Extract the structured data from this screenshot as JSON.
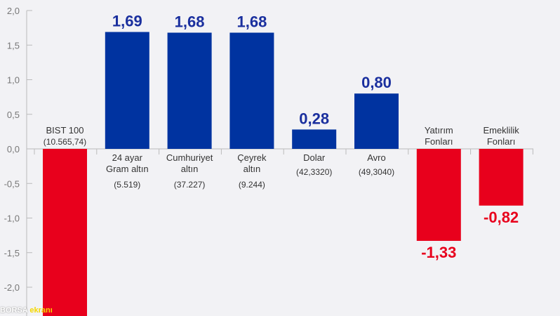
{
  "chart_data": {
    "type": "bar",
    "title": "",
    "xlabel": "",
    "ylabel": "",
    "ylim": [
      -2.4,
      2.0
    ],
    "yticks": [
      "2,0",
      "1,5",
      "1,0",
      "0,5",
      "0,0",
      "-0,5",
      "-1,0",
      "-1,5",
      "-2,0"
    ],
    "ytick_values": [
      2.0,
      1.5,
      1.0,
      0.5,
      0.0,
      -0.5,
      -1.0,
      -1.5,
      -2.0
    ],
    "grid": false,
    "colors": {
      "positive": "#0033a0",
      "negative": "#e8001c",
      "positive_label": "#1a2f9e",
      "negative_label": "#e8001c"
    },
    "bars": [
      {
        "label": [
          "BIST 100"
        ],
        "sub": "(10.565,74)",
        "value": -2.5,
        "value_label": ""
      },
      {
        "label": [
          "24 ayar",
          "Gram altın"
        ],
        "sub": "(5.519)",
        "value": 1.69,
        "value_label": "1,69"
      },
      {
        "label": [
          "Cumhuriyet",
          "altın"
        ],
        "sub": "(37.227)",
        "value": 1.68,
        "value_label": "1,68"
      },
      {
        "label": [
          "Çeyrek",
          "altın"
        ],
        "sub": "(9.244)",
        "value": 1.68,
        "value_label": "1,68"
      },
      {
        "label": [
          "Dolar"
        ],
        "sub": "(42,3320)",
        "value": 0.28,
        "value_label": "0,28"
      },
      {
        "label": [
          "Avro"
        ],
        "sub": "(49,3040)",
        "value": 0.8,
        "value_label": "0,80"
      },
      {
        "label": [
          "Yatırım",
          "Fonları"
        ],
        "sub": "",
        "value": -1.33,
        "value_label": "-1,33"
      },
      {
        "label": [
          "Emeklilik",
          "Fonları"
        ],
        "sub": "",
        "value": -0.82,
        "value_label": "-0,82"
      }
    ]
  },
  "watermark": {
    "part1": "BORSA",
    "part2": "ekranı"
  }
}
